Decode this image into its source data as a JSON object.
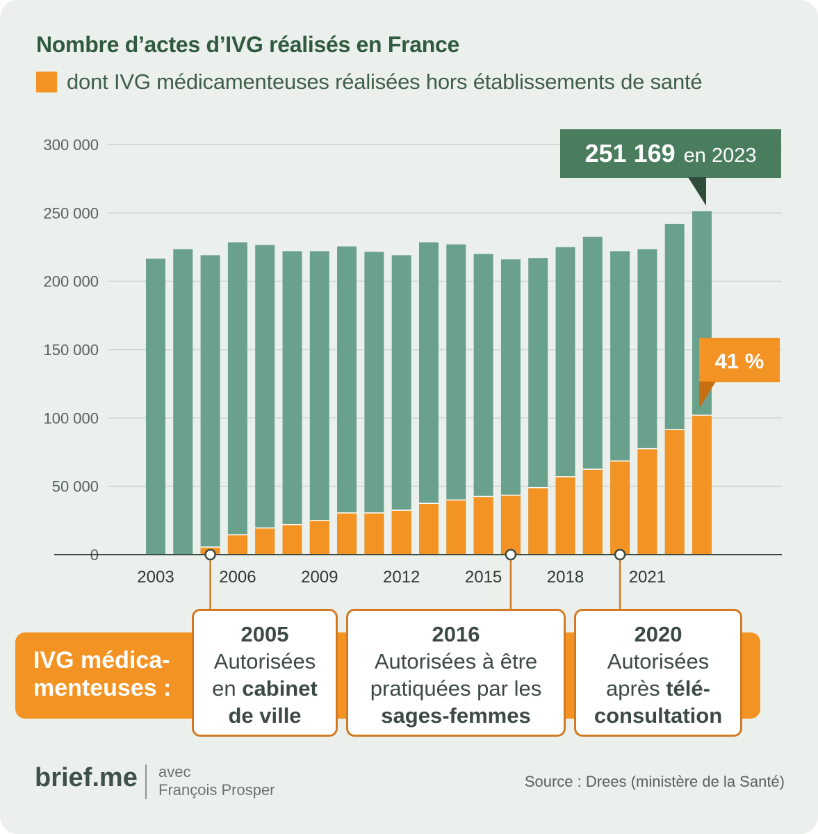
{
  "title": "Nombre d’actes d’IVG réalisés en France",
  "legend_label": "dont IVG médicamenteuses réalisées hors établissements de santé",
  "colors": {
    "total": "#6aa18d",
    "outside": "#f39323",
    "dark_green": "#4a7d5e",
    "orange": "#f39323"
  },
  "chart_data": {
    "type": "bar",
    "x": [
      2003,
      2004,
      2005,
      2006,
      2007,
      2008,
      2009,
      2010,
      2011,
      2012,
      2013,
      2014,
      2015,
      2016,
      2017,
      2018,
      2019,
      2020,
      2021,
      2022,
      2023
    ],
    "x_tick_labels": [
      "2003",
      "2006",
      "2009",
      "2012",
      "2015",
      "2018",
      "2021"
    ],
    "x_tick_years": [
      2003,
      2006,
      2009,
      2012,
      2015,
      2018,
      2021
    ],
    "y_tick_labels": [
      "0",
      "50 000",
      "100 000",
      "150 000",
      "200 000",
      "250 000",
      "300 000"
    ],
    "y_tick_values": [
      0,
      50000,
      100000,
      150000,
      200000,
      250000,
      300000
    ],
    "ylim": [
      0,
      300000
    ],
    "series": [
      {
        "values": [
          216500,
          223500,
          219000,
          228500,
          226500,
          222000,
          222000,
          225500,
          221500,
          219000,
          228500,
          227000,
          220000,
          216000,
          217000,
          225000,
          232500,
          222000,
          223500,
          242000,
          251169
        ]
      },
      {
        "name": "dont IVG médicamenteuses réalisées hors établissements de santé",
        "values": [
          0,
          0,
          5500,
          14500,
          19500,
          22000,
          25000,
          30500,
          30500,
          32500,
          37500,
          40000,
          42500,
          43500,
          49000,
          57000,
          62500,
          68500,
          77500,
          91500,
          102000
        ]
      }
    ],
    "annotations": {
      "total_2023_value": "251 169",
      "total_2023_suffix": "en 2023",
      "share_2023": "41 %"
    }
  },
  "band_label": "IVG médica-menteuses :",
  "callouts": [
    {
      "year": "2005",
      "line1": "Autorisées",
      "line2_pre": "en ",
      "line2_bold": "cabinet",
      "line3_pre": "",
      "line3_bold": "de ville"
    },
    {
      "year": "2016",
      "line1": "Autorisées à être",
      "line2_pre": "pratiquées par les",
      "line2_bold": "",
      "line3_pre": "",
      "line3_bold": "sages-femmes"
    },
    {
      "year": "2020",
      "line1": "Autorisées",
      "line2_pre": "après ",
      "line2_bold": "télé-",
      "line3_pre": "",
      "line3_bold": "consultation"
    }
  ],
  "callout_years": [
    2005,
    2016,
    2020
  ],
  "footer": {
    "brand": "brief.me",
    "author_line1": "avec",
    "author_line2": "François Prosper",
    "source": "Source : Drees (ministère de la Santé)"
  }
}
